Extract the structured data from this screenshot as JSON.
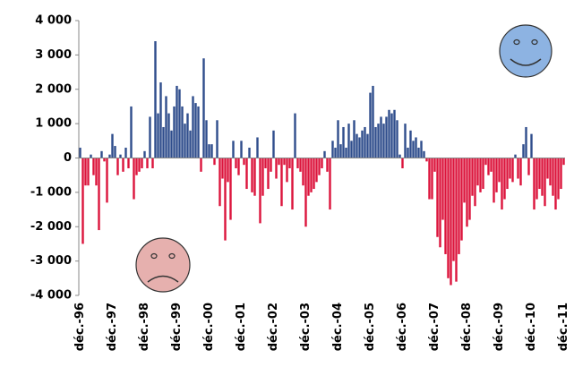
{
  "chart_data": {
    "type": "bar",
    "categories": [
      "déc.-96",
      null,
      null,
      null,
      null,
      null,
      null,
      null,
      null,
      null,
      null,
      null,
      "déc.-97",
      null,
      null,
      null,
      null,
      null,
      null,
      null,
      null,
      null,
      null,
      null,
      "déc.-98",
      null,
      null,
      null,
      null,
      null,
      null,
      null,
      null,
      null,
      null,
      null,
      "déc.-99",
      null,
      null,
      null,
      null,
      null,
      null,
      null,
      null,
      null,
      null,
      null,
      "déc.-00",
      null,
      null,
      null,
      null,
      null,
      null,
      null,
      null,
      null,
      null,
      null,
      "déc.-01",
      null,
      null,
      null,
      null,
      null,
      null,
      null,
      null,
      null,
      null,
      null,
      "déc.-02",
      null,
      null,
      null,
      null,
      null,
      null,
      null,
      null,
      null,
      null,
      null,
      "déc.-03",
      null,
      null,
      null,
      null,
      null,
      null,
      null,
      null,
      null,
      null,
      null,
      "déc.-04",
      null,
      null,
      null,
      null,
      null,
      null,
      null,
      null,
      null,
      null,
      null,
      "déc.-05",
      null,
      null,
      null,
      null,
      null,
      null,
      null,
      null,
      null,
      null,
      null,
      "déc.-06",
      null,
      null,
      null,
      null,
      null,
      null,
      null,
      null,
      null,
      null,
      null,
      "déc.-07",
      null,
      null,
      null,
      null,
      null,
      null,
      null,
      null,
      null,
      null,
      null,
      "déc.-08",
      null,
      null,
      null,
      null,
      null,
      null,
      null,
      null,
      null,
      null,
      null,
      "déc.-09",
      null,
      null,
      null,
      null,
      null,
      null,
      null,
      null,
      null,
      null,
      null,
      "déc.-10",
      null,
      null,
      null,
      null,
      null,
      null,
      null,
      null,
      null,
      null,
      null,
      "déc.-11"
    ],
    "values": [
      300,
      -2500,
      -800,
      -800,
      100,
      -500,
      -800,
      -2100,
      200,
      -100,
      -1300,
      100,
      700,
      350,
      -500,
      100,
      -400,
      300,
      -300,
      1500,
      -1200,
      -500,
      -400,
      -300,
      200,
      -300,
      1200,
      -300,
      3400,
      1300,
      2200,
      900,
      1800,
      1300,
      800,
      1500,
      2100,
      2000,
      1500,
      1000,
      1300,
      800,
      1800,
      1600,
      1500,
      -400,
      2900,
      1100,
      400,
      400,
      -200,
      1100,
      -1400,
      -600,
      -2400,
      -700,
      -1800,
      500,
      -300,
      -500,
      500,
      -200,
      -900,
      300,
      -1000,
      -1100,
      600,
      -1900,
      -1100,
      -300,
      -900,
      -400,
      800,
      -600,
      -200,
      -1400,
      -200,
      -700,
      -300,
      -1500,
      1300,
      -300,
      -400,
      -800,
      -2000,
      -1100,
      -1000,
      -900,
      -700,
      -500,
      -300,
      200,
      -400,
      -1500,
      500,
      300,
      1100,
      400,
      900,
      300,
      1000,
      500,
      1100,
      700,
      600,
      800,
      900,
      700,
      1900,
      2100,
      900,
      1000,
      1200,
      1000,
      1200,
      1400,
      1300,
      1400,
      1100,
      100,
      -300,
      1000,
      300,
      800,
      500,
      600,
      300,
      500,
      200,
      -100,
      -1200,
      -1200,
      -400,
      -2300,
      -2600,
      -1800,
      -2800,
      -3500,
      -3700,
      -3000,
      -3600,
      -2800,
      -2400,
      -1300,
      -2000,
      -1800,
      -1100,
      -1400,
      -800,
      -1000,
      -900,
      -200,
      -500,
      -400,
      -1300,
      -1000,
      -700,
      -1500,
      -1200,
      -900,
      -600,
      -700,
      100,
      -600,
      -800,
      400,
      900,
      -500,
      700,
      -1500,
      -1200,
      -900,
      -1100,
      -1400,
      -600,
      -800,
      -1100,
      -1500,
      -1200,
      -900,
      -200
    ],
    "positive_color": "#2f4d8c",
    "negative_color": "#dc143c",
    "ylim": [
      -4000,
      4000
    ],
    "yticks": [
      {
        "value": -4000,
        "label": "-4 000"
      },
      {
        "value": -3000,
        "label": "-3 000"
      },
      {
        "value": -2000,
        "label": "-2 000"
      },
      {
        "value": -1000,
        "label": "-1 000"
      },
      0,
      {
        "value": 1000,
        "label": "1 000"
      },
      {
        "value": 2000,
        "label": "2 000"
      },
      {
        "value": 3000,
        "label": "3 000"
      },
      {
        "value": 4000,
        "label": "4 000"
      }
    ],
    "grid": false
  }
}
